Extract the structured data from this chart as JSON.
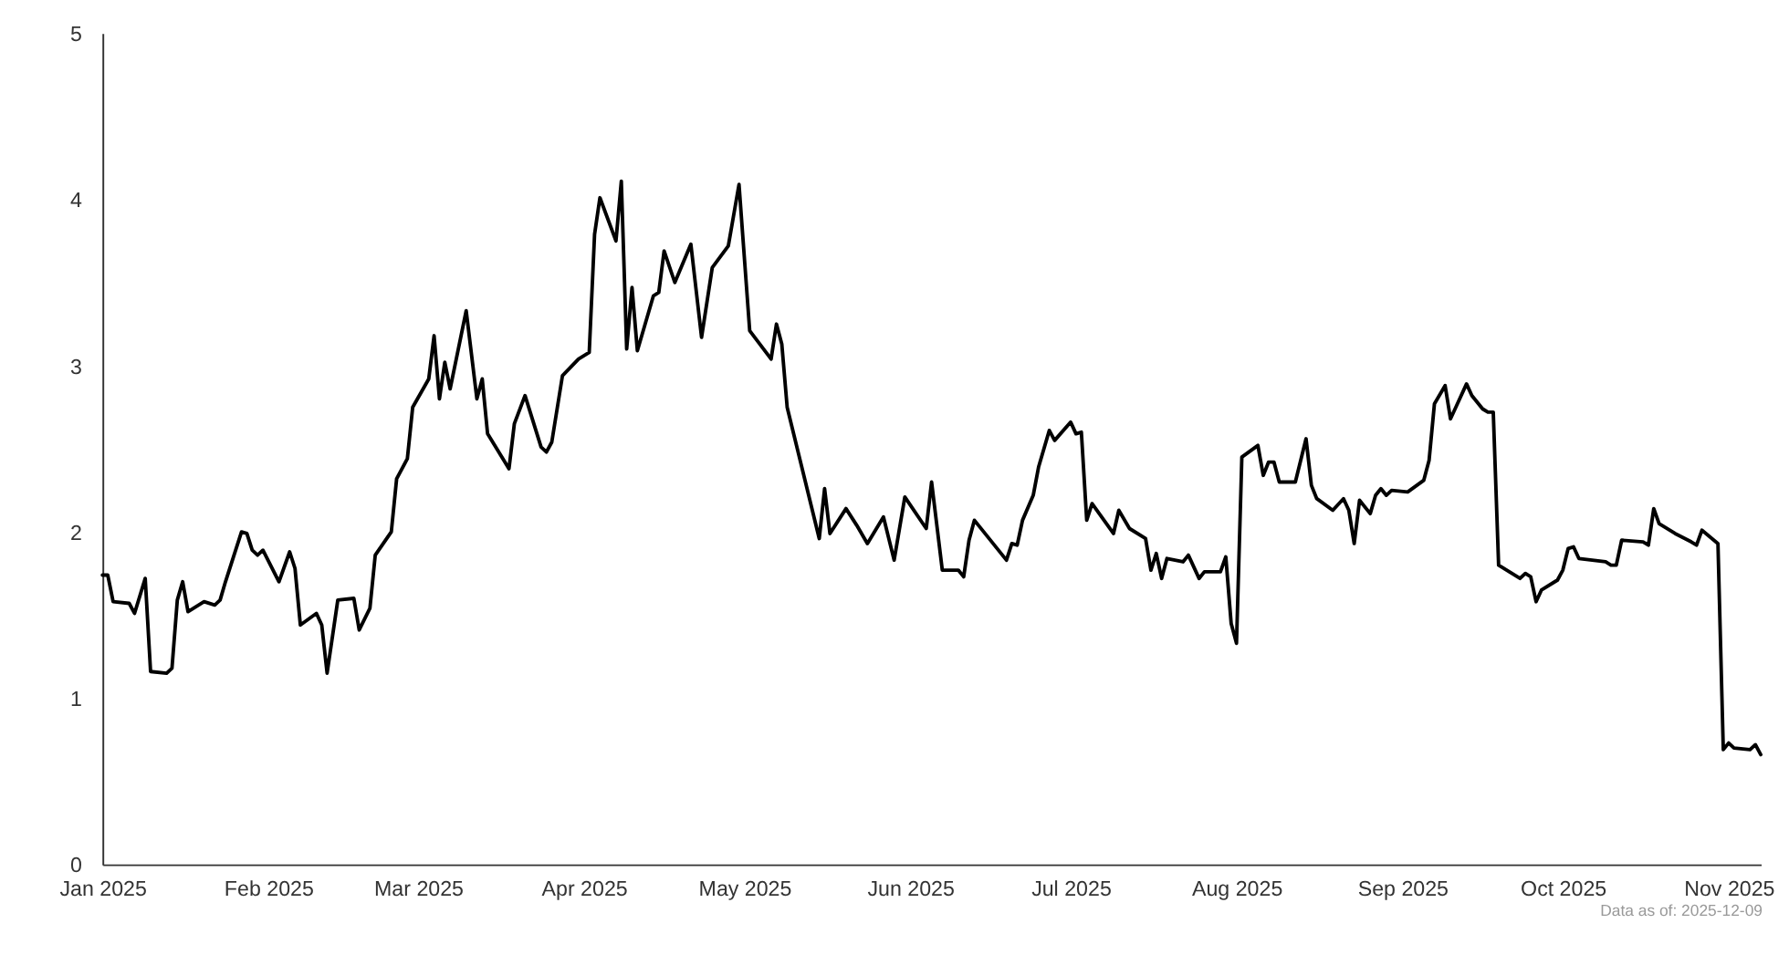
{
  "chart_data": {
    "type": "line",
    "annotations": [
      "Data as of: 2025-12-09"
    ],
    "x": [
      "2025-01-01",
      "2025-01-02",
      "2025-01-03",
      "2025-01-06",
      "2025-01-07",
      "2025-01-09",
      "2025-01-10",
      "2025-01-13",
      "2025-01-14",
      "2025-01-15",
      "2025-01-16",
      "2025-01-17",
      "2025-01-20",
      "2025-01-22",
      "2025-01-23",
      "2025-01-24",
      "2025-01-27",
      "2025-01-28",
      "2025-01-29",
      "2025-01-30",
      "2025-01-31",
      "2025-02-03",
      "2025-02-05",
      "2025-02-06",
      "2025-02-07",
      "2025-02-10",
      "2025-02-11",
      "2025-02-12",
      "2025-02-14",
      "2025-02-17",
      "2025-02-18",
      "2025-02-20",
      "2025-02-21",
      "2025-02-24",
      "2025-02-25",
      "2025-02-27",
      "2025-02-28",
      "2025-03-03",
      "2025-03-04",
      "2025-03-05",
      "2025-03-06",
      "2025-03-07",
      "2025-03-10",
      "2025-03-12",
      "2025-03-13",
      "2025-03-14",
      "2025-03-18",
      "2025-03-19",
      "2025-03-21",
      "2025-03-24",
      "2025-03-25",
      "2025-03-26",
      "2025-03-28",
      "2025-03-31",
      "2025-04-02",
      "2025-04-03",
      "2025-04-04",
      "2025-04-07",
      "2025-04-08",
      "2025-04-09",
      "2025-04-10",
      "2025-04-11",
      "2025-04-14",
      "2025-04-15",
      "2025-04-16",
      "2025-04-18",
      "2025-04-21",
      "2025-04-23",
      "2025-04-25",
      "2025-04-28",
      "2025-04-30",
      "2025-05-02",
      "2025-05-06",
      "2025-05-07",
      "2025-05-08",
      "2025-05-09",
      "2025-05-15",
      "2025-05-16",
      "2025-05-17",
      "2025-05-20",
      "2025-05-22",
      "2025-05-24",
      "2025-05-27",
      "2025-05-29",
      "2025-05-31",
      "2025-06-04",
      "2025-06-05",
      "2025-06-07",
      "2025-06-10",
      "2025-06-11",
      "2025-06-12",
      "2025-06-13",
      "2025-06-19",
      "2025-06-20",
      "2025-06-21",
      "2025-06-22",
      "2025-06-24",
      "2025-06-25",
      "2025-06-27",
      "2025-06-28",
      "2025-07-01",
      "2025-07-02",
      "2025-07-03",
      "2025-07-04",
      "2025-07-05",
      "2025-07-09",
      "2025-07-10",
      "2025-07-12",
      "2025-07-15",
      "2025-07-16",
      "2025-07-17",
      "2025-07-18",
      "2025-07-19",
      "2025-07-22",
      "2025-07-23",
      "2025-07-25",
      "2025-07-26",
      "2025-07-29",
      "2025-07-30",
      "2025-07-31",
      "2025-08-01",
      "2025-08-02",
      "2025-08-05",
      "2025-08-06",
      "2025-08-07",
      "2025-08-08",
      "2025-08-09",
      "2025-08-12",
      "2025-08-14",
      "2025-08-15",
      "2025-08-16",
      "2025-08-19",
      "2025-08-21",
      "2025-08-22",
      "2025-08-23",
      "2025-08-24",
      "2025-08-26",
      "2025-08-27",
      "2025-08-28",
      "2025-08-29",
      "2025-08-30",
      "2025-09-02",
      "2025-09-05",
      "2025-09-06",
      "2025-09-07",
      "2025-09-09",
      "2025-09-10",
      "2025-09-11",
      "2025-09-13",
      "2025-09-14",
      "2025-09-16",
      "2025-09-17",
      "2025-09-18",
      "2025-09-19",
      "2025-09-23",
      "2025-09-24",
      "2025-09-25",
      "2025-09-26",
      "2025-09-27",
      "2025-09-30",
      "2025-10-01",
      "2025-10-02",
      "2025-10-03",
      "2025-10-04",
      "2025-10-09",
      "2025-10-10",
      "2025-10-11",
      "2025-10-12",
      "2025-10-16",
      "2025-10-17",
      "2025-10-18",
      "2025-10-19",
      "2025-10-22",
      "2025-10-25",
      "2025-10-26",
      "2025-10-27",
      "2025-10-30",
      "2025-10-31",
      "2025-11-01",
      "2025-11-02",
      "2025-11-05",
      "2025-11-06",
      "2025-11-07"
    ],
    "series": [
      {
        "color": "#000000",
        "values": [
          1.74,
          1.74,
          1.58,
          1.57,
          1.51,
          1.72,
          1.16,
          1.15,
          1.18,
          1.59,
          1.7,
          1.52,
          1.58,
          1.56,
          1.59,
          1.7,
          2.0,
          1.99,
          1.89,
          1.86,
          1.89,
          1.7,
          1.88,
          1.78,
          1.44,
          1.51,
          1.44,
          1.15,
          1.59,
          1.6,
          1.41,
          1.54,
          1.86,
          2.0,
          2.32,
          2.44,
          2.75,
          2.92,
          3.18,
          2.8,
          3.02,
          2.86,
          3.33,
          2.8,
          2.92,
          2.59,
          2.38,
          2.65,
          2.82,
          2.51,
          2.48,
          2.54,
          2.94,
          3.04,
          3.08,
          3.79,
          4.01,
          3.75,
          4.11,
          3.1,
          3.47,
          3.09,
          3.42,
          3.44,
          3.69,
          3.5,
          3.73,
          3.17,
          3.59,
          3.72,
          4.09,
          3.21,
          3.04,
          3.25,
          3.13,
          2.75,
          1.96,
          2.26,
          1.99,
          2.14,
          2.04,
          1.93,
          2.09,
          1.83,
          2.21,
          2.02,
          2.3,
          1.77,
          1.77,
          1.73,
          1.95,
          2.07,
          1.83,
          1.93,
          1.92,
          2.07,
          2.22,
          2.39,
          2.61,
          2.55,
          2.66,
          2.59,
          2.6,
          2.07,
          2.17,
          1.99,
          2.13,
          2.02,
          1.96,
          1.77,
          1.87,
          1.72,
          1.84,
          1.82,
          1.86,
          1.72,
          1.76,
          1.76,
          1.85,
          1.45,
          1.33,
          2.45,
          2.52,
          2.34,
          2.42,
          2.42,
          2.3,
          2.3,
          2.56,
          2.28,
          2.2,
          2.13,
          2.2,
          2.13,
          1.93,
          2.19,
          2.11,
          2.22,
          2.26,
          2.22,
          2.25,
          2.24,
          2.31,
          2.43,
          2.77,
          2.88,
          2.68,
          2.75,
          2.89,
          2.82,
          2.74,
          2.72,
          2.72,
          1.8,
          1.72,
          1.75,
          1.73,
          1.58,
          1.65,
          1.71,
          1.77,
          1.9,
          1.91,
          1.84,
          1.82,
          1.8,
          1.8,
          1.95,
          1.94,
          1.92,
          2.14,
          2.05,
          1.99,
          1.94,
          1.92,
          2.01,
          1.93,
          0.69,
          0.73,
          0.7,
          0.69,
          0.72,
          0.66
        ]
      }
    ],
    "xlim": [
      "2025-01-01",
      "2025-11-07"
    ],
    "xticks": [
      {
        "value": "2025-01-01",
        "label": "Jan 2025"
      },
      {
        "value": "2025-02-01",
        "label": "Feb 2025"
      },
      {
        "value": "2025-03-01",
        "label": "Mar 2025"
      },
      {
        "value": "2025-04-01",
        "label": "Apr 2025"
      },
      {
        "value": "2025-05-01",
        "label": "May 2025"
      },
      {
        "value": "2025-06-01",
        "label": "Jun 2025"
      },
      {
        "value": "2025-07-01",
        "label": "Jul 2025"
      },
      {
        "value": "2025-08-01",
        "label": "Aug 2025"
      },
      {
        "value": "2025-09-01",
        "label": "Sep 2025"
      },
      {
        "value": "2025-10-01",
        "label": "Oct 2025"
      },
      {
        "value": "2025-11-01",
        "label": "Nov 2025"
      }
    ],
    "ylim": [
      0,
      5
    ],
    "yticks": [
      0,
      1,
      2,
      3,
      4,
      5
    ],
    "grid": false,
    "marker": "none",
    "line_style": "solid"
  }
}
